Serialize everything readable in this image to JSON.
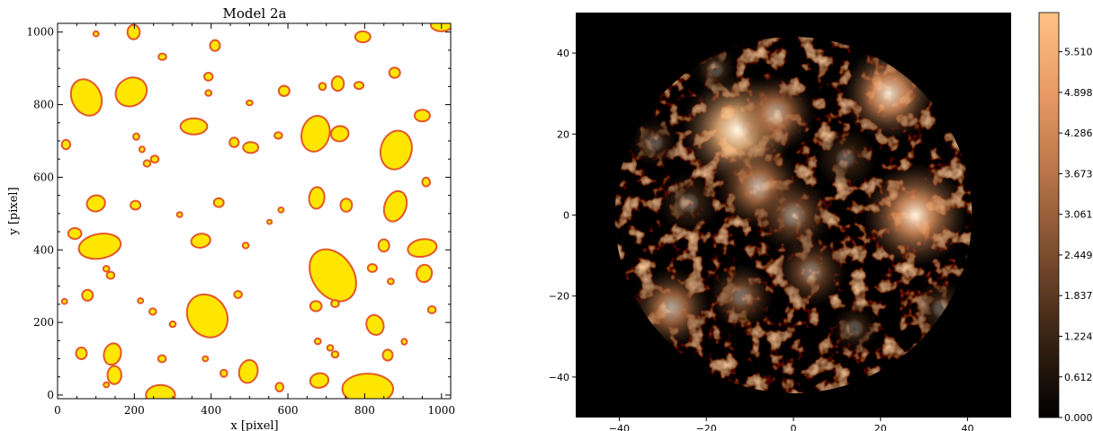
{
  "chart_data": [
    {
      "type": "scatter",
      "marker": "ellipse",
      "title": "Model 2a",
      "xlabel": "x [pixel]",
      "ylabel": "y [pixel]",
      "xlim": [
        0,
        1024
      ],
      "ylim": [
        -10,
        1024
      ],
      "xticks": [
        "0",
        "200",
        "400",
        "600",
        "800",
        "1000"
      ],
      "yticks": [
        "0",
        "200",
        "400",
        "600",
        "800",
        "1000"
      ],
      "grid": false,
      "colors": {
        "fill": "#ffe600",
        "edge": "#e2582a"
      },
      "ellipses": [
        {
          "x": 100,
          "y": 995,
          "rx": 7,
          "ry": 7,
          "angle": 0
        },
        {
          "x": 198,
          "y": 1000,
          "rx": 16,
          "ry": 20,
          "angle": 0
        },
        {
          "x": 1000,
          "y": 1020,
          "rx": 28,
          "ry": 18,
          "angle": 0
        },
        {
          "x": 410,
          "y": 963,
          "rx": 13,
          "ry": 15,
          "angle": 0
        },
        {
          "x": 273,
          "y": 932,
          "rx": 10,
          "ry": 9,
          "angle": 0
        },
        {
          "x": 795,
          "y": 987,
          "rx": 20,
          "ry": 15,
          "angle": 0
        },
        {
          "x": 878,
          "y": 888,
          "rx": 14,
          "ry": 14,
          "angle": 0
        },
        {
          "x": 75,
          "y": 820,
          "rx": 38,
          "ry": 52,
          "angle": -25
        },
        {
          "x": 192,
          "y": 835,
          "rx": 42,
          "ry": 38,
          "angle": -30
        },
        {
          "x": 393,
          "y": 877,
          "rx": 11,
          "ry": 11,
          "angle": 0
        },
        {
          "x": 393,
          "y": 832,
          "rx": 8,
          "ry": 8,
          "angle": 0
        },
        {
          "x": 500,
          "y": 805,
          "rx": 8,
          "ry": 7,
          "angle": 0
        },
        {
          "x": 590,
          "y": 838,
          "rx": 14,
          "ry": 14,
          "angle": 0
        },
        {
          "x": 690,
          "y": 850,
          "rx": 9,
          "ry": 10,
          "angle": 0
        },
        {
          "x": 730,
          "y": 858,
          "rx": 16,
          "ry": 20,
          "angle": 0
        },
        {
          "x": 785,
          "y": 853,
          "rx": 12,
          "ry": 10,
          "angle": 0
        },
        {
          "x": 950,
          "y": 770,
          "rx": 20,
          "ry": 16,
          "angle": 0
        },
        {
          "x": 355,
          "y": 740,
          "rx": 35,
          "ry": 22,
          "angle": 0
        },
        {
          "x": 205,
          "y": 712,
          "rx": 8,
          "ry": 9,
          "angle": 0
        },
        {
          "x": 220,
          "y": 677,
          "rx": 7,
          "ry": 8,
          "angle": 0
        },
        {
          "x": 233,
          "y": 638,
          "rx": 9,
          "ry": 9,
          "angle": 0
        },
        {
          "x": 253,
          "y": 650,
          "rx": 10,
          "ry": 10,
          "angle": 0
        },
        {
          "x": 460,
          "y": 696,
          "rx": 12,
          "ry": 13,
          "angle": 0
        },
        {
          "x": 503,
          "y": 682,
          "rx": 20,
          "ry": 15,
          "angle": 0
        },
        {
          "x": 575,
          "y": 715,
          "rx": 10,
          "ry": 9,
          "angle": 0
        },
        {
          "x": 672,
          "y": 720,
          "rx": 36,
          "ry": 50,
          "angle": 15
        },
        {
          "x": 735,
          "y": 720,
          "rx": 23,
          "ry": 21,
          "angle": -10
        },
        {
          "x": 882,
          "y": 675,
          "rx": 40,
          "ry": 54,
          "angle": 15
        },
        {
          "x": 22,
          "y": 690,
          "rx": 11,
          "ry": 13,
          "angle": 0
        },
        {
          "x": 960,
          "y": 587,
          "rx": 10,
          "ry": 12,
          "angle": 0
        },
        {
          "x": 100,
          "y": 528,
          "rx": 24,
          "ry": 22,
          "angle": -15
        },
        {
          "x": 203,
          "y": 523,
          "rx": 13,
          "ry": 12,
          "angle": 0
        },
        {
          "x": 420,
          "y": 530,
          "rx": 13,
          "ry": 12,
          "angle": 0
        },
        {
          "x": 318,
          "y": 497,
          "rx": 7,
          "ry": 7,
          "angle": 0
        },
        {
          "x": 582,
          "y": 510,
          "rx": 7,
          "ry": 7,
          "angle": 0
        },
        {
          "x": 552,
          "y": 477,
          "rx": 6,
          "ry": 6,
          "angle": 0
        },
        {
          "x": 675,
          "y": 543,
          "rx": 20,
          "ry": 30,
          "angle": 5
        },
        {
          "x": 752,
          "y": 523,
          "rx": 15,
          "ry": 18,
          "angle": 0
        },
        {
          "x": 880,
          "y": 520,
          "rx": 28,
          "ry": 43,
          "angle": 20
        },
        {
          "x": 45,
          "y": 445,
          "rx": 17,
          "ry": 15,
          "angle": 0
        },
        {
          "x": 110,
          "y": 410,
          "rx": 55,
          "ry": 34,
          "angle": -10
        },
        {
          "x": 373,
          "y": 425,
          "rx": 25,
          "ry": 19,
          "angle": -10
        },
        {
          "x": 490,
          "y": 412,
          "rx": 8,
          "ry": 8,
          "angle": 0
        },
        {
          "x": 717,
          "y": 330,
          "rx": 53,
          "ry": 78,
          "angle": -35
        },
        {
          "x": 850,
          "y": 412,
          "rx": 14,
          "ry": 17,
          "angle": 0
        },
        {
          "x": 950,
          "y": 405,
          "rx": 38,
          "ry": 24,
          "angle": -10
        },
        {
          "x": 820,
          "y": 350,
          "rx": 12,
          "ry": 11,
          "angle": 0
        },
        {
          "x": 955,
          "y": 335,
          "rx": 20,
          "ry": 24,
          "angle": 10
        },
        {
          "x": 868,
          "y": 313,
          "rx": 8,
          "ry": 8,
          "angle": 0
        },
        {
          "x": 127,
          "y": 348,
          "rx": 8,
          "ry": 8,
          "angle": 0
        },
        {
          "x": 138,
          "y": 330,
          "rx": 10,
          "ry": 10,
          "angle": 0
        },
        {
          "x": 18,
          "y": 258,
          "rx": 7,
          "ry": 7,
          "angle": 0
        },
        {
          "x": 78,
          "y": 275,
          "rx": 14,
          "ry": 15,
          "angle": 0
        },
        {
          "x": 216,
          "y": 260,
          "rx": 7,
          "ry": 7,
          "angle": 0
        },
        {
          "x": 248,
          "y": 230,
          "rx": 9,
          "ry": 9,
          "angle": 0
        },
        {
          "x": 390,
          "y": 218,
          "rx": 50,
          "ry": 62,
          "angle": -35
        },
        {
          "x": 470,
          "y": 277,
          "rx": 10,
          "ry": 10,
          "angle": 0
        },
        {
          "x": 673,
          "y": 245,
          "rx": 15,
          "ry": 14,
          "angle": 0
        },
        {
          "x": 723,
          "y": 252,
          "rx": 10,
          "ry": 10,
          "angle": 0
        },
        {
          "x": 975,
          "y": 235,
          "rx": 10,
          "ry": 10,
          "angle": 0
        },
        {
          "x": 300,
          "y": 195,
          "rx": 8,
          "ry": 8,
          "angle": 0
        },
        {
          "x": 827,
          "y": 193,
          "rx": 22,
          "ry": 28,
          "angle": -20
        },
        {
          "x": 678,
          "y": 148,
          "rx": 8,
          "ry": 8,
          "angle": 0
        },
        {
          "x": 710,
          "y": 130,
          "rx": 8,
          "ry": 8,
          "angle": 0
        },
        {
          "x": 723,
          "y": 112,
          "rx": 9,
          "ry": 9,
          "angle": 0
        },
        {
          "x": 903,
          "y": 147,
          "rx": 7,
          "ry": 8,
          "angle": 0
        },
        {
          "x": 860,
          "y": 110,
          "rx": 13,
          "ry": 15,
          "angle": 0
        },
        {
          "x": 62,
          "y": 115,
          "rx": 14,
          "ry": 16,
          "angle": 0
        },
        {
          "x": 143,
          "y": 113,
          "rx": 22,
          "ry": 30,
          "angle": 15
        },
        {
          "x": 272,
          "y": 100,
          "rx": 10,
          "ry": 10,
          "angle": 0
        },
        {
          "x": 385,
          "y": 100,
          "rx": 7,
          "ry": 7,
          "angle": 0
        },
        {
          "x": 497,
          "y": 65,
          "rx": 24,
          "ry": 32,
          "angle": 15
        },
        {
          "x": 433,
          "y": 60,
          "rx": 9,
          "ry": 10,
          "angle": 0
        },
        {
          "x": 148,
          "y": 55,
          "rx": 18,
          "ry": 25,
          "angle": 0
        },
        {
          "x": 127,
          "y": 28,
          "rx": 7,
          "ry": 7,
          "angle": 0
        },
        {
          "x": 682,
          "y": 40,
          "rx": 24,
          "ry": 20,
          "angle": -10
        },
        {
          "x": 578,
          "y": 22,
          "rx": 10,
          "ry": 12,
          "angle": 0
        },
        {
          "x": 268,
          "y": 0,
          "rx": 38,
          "ry": 28,
          "angle": 0
        },
        {
          "x": 808,
          "y": 17,
          "rx": 66,
          "ry": 42,
          "angle": 0
        }
      ]
    },
    {
      "type": "heatmap",
      "xlim": [
        -50,
        50
      ],
      "ylim": [
        -50,
        50
      ],
      "xticks": [
        "−40",
        "−20",
        "0",
        "20",
        "40"
      ],
      "yticks": [
        "40",
        "20",
        "0",
        "−20",
        "−40"
      ],
      "colorbar": {
        "range": [
          0,
          6.1
        ],
        "ticks": [
          "5.510",
          "4.898",
          "4.286",
          "3.673",
          "3.061",
          "2.449",
          "1.837",
          "1.224",
          "0.612",
          "0.000"
        ],
        "colormap": "copper",
        "colors": [
          "#000000",
          "#3a2414",
          "#7a4c2e",
          "#b87448",
          "#e89a64",
          "#ffc285"
        ]
      },
      "disk": {
        "center": [
          0,
          0
        ],
        "radius": 41
      },
      "hotspots": [
        {
          "x": -13,
          "y": 21,
          "value": 5.5
        },
        {
          "x": -4,
          "y": 25,
          "value": 3.2
        },
        {
          "x": 22,
          "y": 30,
          "value": 4.5
        },
        {
          "x": -8,
          "y": 7,
          "value": 3.8
        },
        {
          "x": 0,
          "y": 0,
          "value": 3.0
        },
        {
          "x": 28,
          "y": 0,
          "value": 5.0
        },
        {
          "x": -28,
          "y": -23,
          "value": 3.4
        },
        {
          "x": -12,
          "y": -20,
          "value": 2.2
        },
        {
          "x": 4,
          "y": -14,
          "value": 2.6
        },
        {
          "x": 34,
          "y": -23,
          "value": 1.6
        },
        {
          "x": 14,
          "y": -28,
          "value": 1.4
        },
        {
          "x": -24,
          "y": 3,
          "value": 1.8
        },
        {
          "x": 12,
          "y": 14,
          "value": 1.8
        },
        {
          "x": -32,
          "y": 18,
          "value": 1.5
        },
        {
          "x": -18,
          "y": 36,
          "value": 1.2
        }
      ]
    }
  ]
}
